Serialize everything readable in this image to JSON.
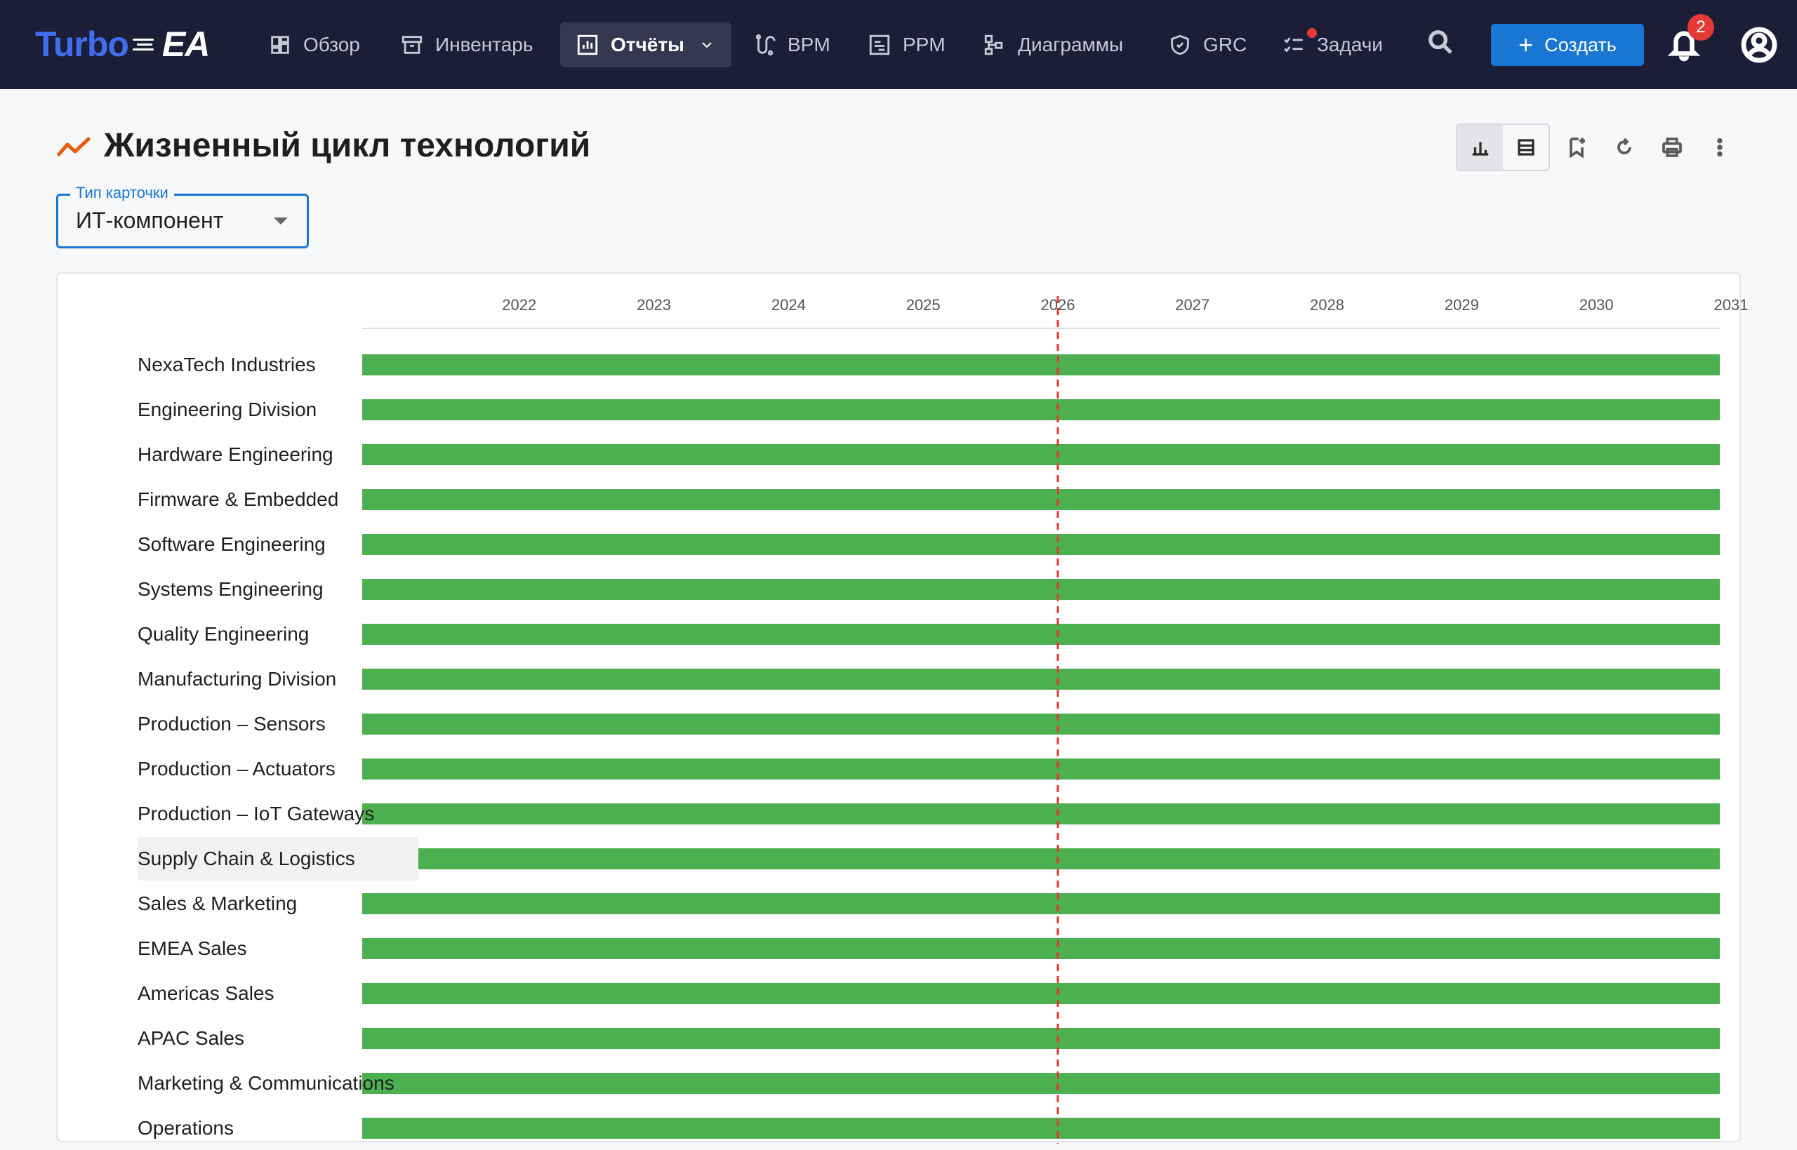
{
  "app": {
    "logo_left": "Turbo",
    "logo_right": "EA"
  },
  "nav": {
    "items": [
      {
        "label": "Обзор",
        "icon": "dashboard-icon"
      },
      {
        "label": "Инвентарь",
        "icon": "archive-icon"
      },
      {
        "label": "Отчёты",
        "icon": "report-chart-icon",
        "active": true
      },
      {
        "label": "BPM",
        "icon": "process-icon"
      },
      {
        "label": "PPM",
        "icon": "project-icon"
      },
      {
        "label": "Диаграммы",
        "icon": "diagram-icon"
      },
      {
        "label": "GRC",
        "icon": "shield-icon"
      },
      {
        "label": "Задачи",
        "icon": "tasks-icon",
        "has_dot": true
      }
    ],
    "create_label": "Создать",
    "notifications_count": "2"
  },
  "page": {
    "title": "Жизненный цикл технологий",
    "card_type": {
      "label": "Тип карточки",
      "value": "ИТ-компонент"
    }
  },
  "colors": {
    "topbar": "#1b1e36",
    "accent": "#1976d2",
    "bar": "#4caf50",
    "today_line": "#e53935",
    "title_icon": "#e8590c"
  },
  "chart_data": {
    "type": "bar",
    "orientation": "horizontal-timeline",
    "xlabel": "",
    "ylabel": "",
    "ticks": [
      "2022",
      "2023",
      "2024",
      "2025",
      "2026",
      "2027",
      "2028",
      "2029",
      "2030",
      "2031"
    ],
    "x_range": [
      "2021-05",
      "2031-06"
    ],
    "today_marker": "2026-07",
    "categories": [
      "NexaTech Industries",
      "Engineering Division",
      "Hardware Engineering",
      "Firmware & Embedded",
      "Software Engineering",
      "Systems Engineering",
      "Quality Engineering",
      "Manufacturing Division",
      "Production – Sensors",
      "Production – Actuators",
      "Production – IoT Gateways",
      "Supply Chain & Logistics",
      "Sales & Marketing",
      "EMEA Sales",
      "Americas Sales",
      "APAC Sales",
      "Marketing & Communications",
      "Operations"
    ],
    "highlighted_category": "Supply Chain & Logistics",
    "bar_start": "2021-05",
    "bar_end": "2031-06"
  }
}
